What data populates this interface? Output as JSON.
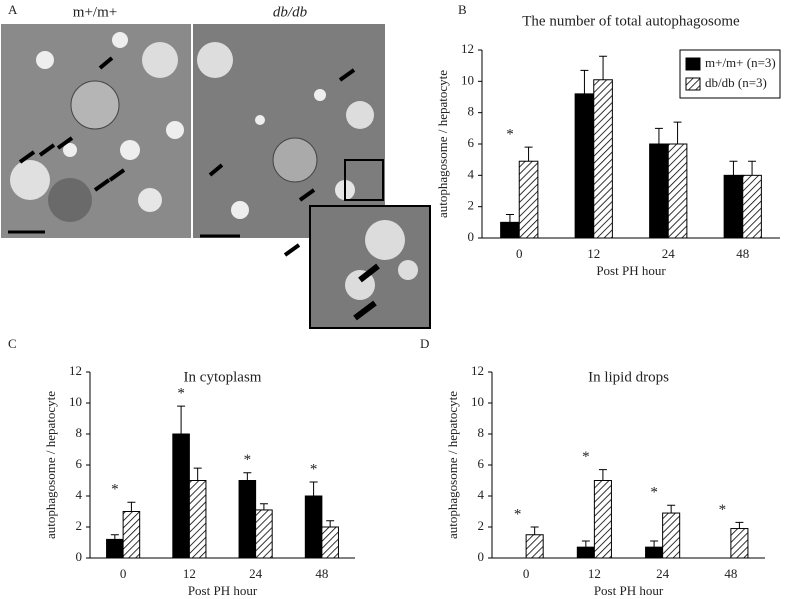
{
  "figure": {
    "panel_labels": [
      "A",
      "B",
      "C",
      "D"
    ],
    "image_labels": [
      "m+/m+",
      "db/db"
    ]
  },
  "chart_data": [
    {
      "type": "bar",
      "title": "The number of total autophagosome",
      "y_label": "autophagosome / hepatocyte",
      "x_label": "Post PH hour",
      "categories": [
        "0",
        "12",
        "24",
        "48"
      ],
      "series": [
        {
          "name": "m+/m+ (n=3)",
          "color": "#000000",
          "fill": "solid",
          "values": [
            1,
            9.2,
            6,
            4
          ],
          "errors": [
            0.5,
            1.5,
            1,
            0.9
          ]
        },
        {
          "name": "db/db (n=3)",
          "color": "#000000",
          "fill": "hatch",
          "values": [
            4.9,
            10.1,
            6,
            4
          ],
          "errors": [
            0.9,
            1.5,
            1.4,
            0.9
          ]
        }
      ],
      "significance": [
        "*",
        null,
        null,
        null
      ],
      "ylim": [
        0,
        12
      ],
      "yticks": [
        0,
        2,
        4,
        6,
        8,
        10,
        12
      ],
      "legend": "upper right"
    },
    {
      "type": "bar",
      "title": "In cytoplasm",
      "y_label": "autophagosome / hepatocyte",
      "x_label": "Post PH hour",
      "categories": [
        "0",
        "12",
        "24",
        "48"
      ],
      "series": [
        {
          "color": "#000000",
          "fill": "solid",
          "values": [
            1.2,
            8,
            5,
            4
          ],
          "errors": [
            0.3,
            1.8,
            0.5,
            0.9
          ]
        },
        {
          "color": "#000000",
          "fill": "hatch",
          "values": [
            3,
            5,
            3.1,
            2
          ],
          "errors": [
            0.6,
            0.8,
            0.4,
            0.4
          ]
        }
      ],
      "significance": [
        "*",
        "*",
        "*",
        "*"
      ],
      "ylim": [
        0,
        12
      ],
      "yticks": [
        0,
        2,
        4,
        6,
        8,
        10,
        12
      ]
    },
    {
      "type": "bar",
      "title": "In lipid drops",
      "y_label": "autophagosome / hepatocyte",
      "x_label": "Post PH hour",
      "categories": [
        "0",
        "12",
        "24",
        "48"
      ],
      "series": [
        {
          "color": "#000000",
          "fill": "solid",
          "values": [
            0,
            0.7,
            0.7,
            0
          ],
          "errors": [
            0,
            0.4,
            0.4,
            0
          ]
        },
        {
          "color": "#000000",
          "fill": "hatch",
          "values": [
            1.5,
            5,
            2.9,
            1.9
          ],
          "errors": [
            0.5,
            0.7,
            0.5,
            0.4
          ]
        }
      ],
      "significance": [
        "*",
        "*",
        "*",
        "*"
      ],
      "ylim": [
        0,
        12
      ],
      "yticks": [
        0,
        2,
        4,
        6,
        8,
        10,
        12
      ]
    }
  ]
}
